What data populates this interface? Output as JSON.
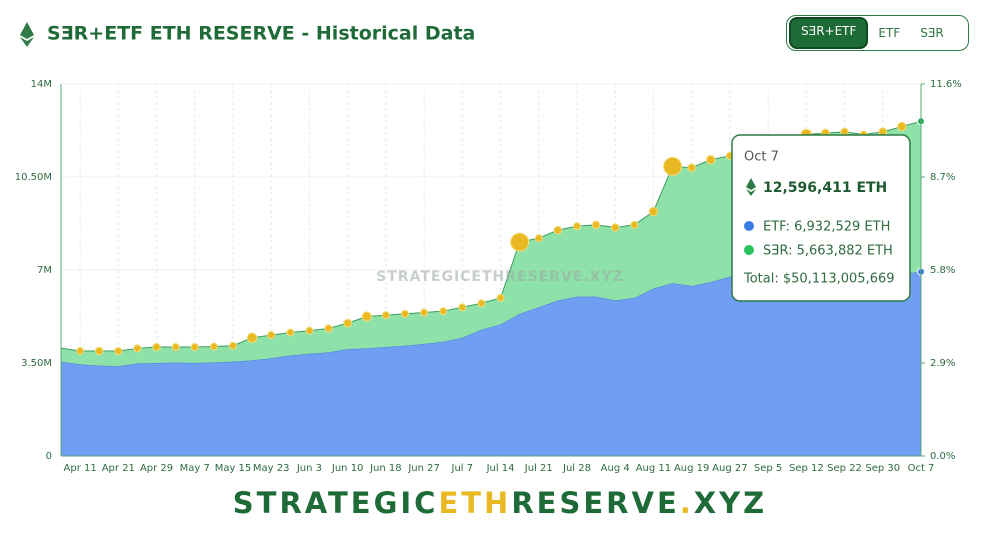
{
  "header": {
    "title": "SƎR+ETF ETH RESERVE - Historical Data",
    "buttons": [
      "SƎR+ETF",
      "ETF",
      "SƎR"
    ]
  },
  "chart_data": {
    "type": "stacked-area",
    "watermark": "STRATEGICETHRESERVE.XYZ",
    "categories": [
      null,
      "Apr 11",
      null,
      "Apr 21",
      null,
      "Apr 29",
      null,
      "May 7",
      null,
      "May 15",
      null,
      "May 23",
      null,
      "Jun 3",
      null,
      "Jun 10",
      null,
      "Jun 18",
      null,
      "Jun 27",
      null,
      "Jul 7",
      null,
      "Jul 14",
      null,
      "Jul 21",
      null,
      "Jul 28",
      null,
      "Aug 4",
      null,
      "Aug 11",
      null,
      "Aug 19",
      null,
      "Aug 27",
      null,
      "Sep 5",
      null,
      "Sep 12",
      null,
      "Sep 22",
      null,
      "Sep 30",
      null,
      "Oct 7"
    ],
    "series": [
      {
        "name": "ETF",
        "color": "#6f9ef3",
        "values": [
          3540000,
          3450000,
          3400000,
          3380000,
          3480000,
          3500000,
          3520000,
          3500000,
          3520000,
          3550000,
          3600000,
          3680000,
          3780000,
          3850000,
          3900000,
          4020000,
          4050000,
          4100000,
          4150000,
          4220000,
          4300000,
          4450000,
          4750000,
          4950000,
          5350000,
          5600000,
          5850000,
          6000000,
          6000000,
          5850000,
          5950000,
          6300000,
          6500000,
          6400000,
          6550000,
          6750000,
          6900000,
          6900000,
          6850000,
          6850000,
          6800000,
          6800000,
          6780000,
          6800000,
          6850000,
          6932529
        ]
      },
      {
        "name": "SƎR",
        "color": "#8ee2a9",
        "values": [
          520000,
          500000,
          550000,
          570000,
          570000,
          600000,
          580000,
          600000,
          600000,
          600000,
          850000,
          870000,
          870000,
          870000,
          900000,
          980000,
          1200000,
          1200000,
          1200000,
          1180000,
          1150000,
          1150000,
          1000000,
          1000000,
          2700000,
          2600000,
          2650000,
          2650000,
          2700000,
          2750000,
          2750000,
          2900000,
          4400000,
          4450000,
          4600000,
          4550000,
          4500000,
          4550000,
          4900000,
          5250000,
          5350000,
          5400000,
          5320000,
          5400000,
          5550000,
          5663882
        ]
      }
    ],
    "ylim": [
      0,
      14000000
    ],
    "yticks": [
      {
        "value": 0,
        "label": "0"
      },
      {
        "value": 3500000,
        "label": "3.50M"
      },
      {
        "value": 7000000,
        "label": "7M"
      },
      {
        "value": 10500000,
        "label": "10.50M"
      },
      {
        "value": 14000000,
        "label": "14M"
      }
    ],
    "y2lim": [
      0,
      11.6
    ],
    "y2ticks": [
      {
        "value": 0,
        "label": "0.0%"
      },
      {
        "value": 2.9,
        "label": "2.9%"
      },
      {
        "value": 5.8,
        "label": "5.8%"
      },
      {
        "value": 8.7,
        "label": "8.7%"
      },
      {
        "value": 11.6,
        "label": "11.6%"
      }
    ],
    "grid": true,
    "tooltip": {
      "date": "Oct 7",
      "total": "12,596,411 ETH",
      "etf": "ETF: 6,932,529 ETH",
      "ser": "SƎR: 5,663,882 ETH",
      "usd": "Total: $50,113,005,669"
    }
  },
  "footer": {
    "logo": [
      "STRATEGIC",
      "ETH",
      "RESERVE",
      ".",
      "XYZ"
    ]
  }
}
